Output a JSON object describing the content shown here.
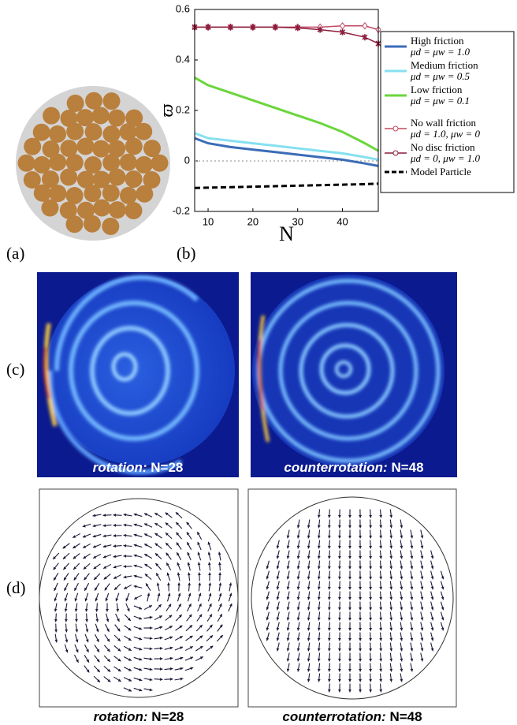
{
  "panels": {
    "a": {
      "label": "(a)"
    },
    "b": {
      "label": "(b)"
    },
    "c": {
      "label": "(c)",
      "captions": [
        {
          "mode": "rotation:",
          "n": "N=28"
        },
        {
          "mode": "counterrotation:",
          "n": "N=48"
        }
      ]
    },
    "d": {
      "label": "(d)",
      "captions": [
        {
          "mode": "rotation:",
          "n": "N=28"
        },
        {
          "mode": "counterrotation:",
          "n": "N=48"
        }
      ]
    }
  },
  "chart_data": {
    "type": "line",
    "xlabel": "N",
    "ylabel": "ϖ",
    "x": [
      7,
      10,
      15,
      20,
      25,
      30,
      35,
      40,
      45,
      48
    ],
    "xlim": [
      7,
      48
    ],
    "xticks": [
      10,
      20,
      30,
      40
    ],
    "ylim": [
      -0.2,
      0.6
    ],
    "yticks": [
      -0.2,
      0,
      0.2,
      0.4,
      0.6
    ],
    "series": [
      {
        "name": "High friction",
        "params": "μd = μw = 1.0",
        "color": "#3b6cb7",
        "values": [
          0.09,
          0.07,
          0.055,
          0.045,
          0.035,
          0.025,
          0.015,
          0.005,
          -0.01,
          -0.02
        ]
      },
      {
        "name": "Medium friction",
        "params": "μd = μw = 0.5",
        "color": "#86e0f0",
        "values": [
          0.11,
          0.09,
          0.08,
          0.07,
          0.06,
          0.05,
          0.04,
          0.03,
          0.015,
          0.005
        ]
      },
      {
        "name": "Low friction",
        "params": "μd = μw = 0.1",
        "color": "#6ad63c",
        "values": [
          0.33,
          0.3,
          0.27,
          0.24,
          0.21,
          0.18,
          0.15,
          0.115,
          0.07,
          0.04
        ]
      },
      {
        "name": "No wall friction",
        "params": "μd = 1.0, μw = 0",
        "color": "#c04a62",
        "marker": "diamond",
        "values": [
          0.53,
          0.53,
          0.53,
          0.53,
          0.53,
          0.53,
          0.53,
          0.535,
          0.535,
          0.52
        ]
      },
      {
        "name": "No disc friction",
        "params": "μd = 0, μw = 1.0",
        "color": "#8c1c3c",
        "marker": "star",
        "values": [
          0.53,
          0.53,
          0.53,
          0.53,
          0.53,
          0.527,
          0.52,
          0.51,
          0.49,
          0.465
        ]
      },
      {
        "name": "Model Particle",
        "color": "#000000",
        "dashed": true,
        "values": [
          -0.107,
          -0.106,
          -0.104,
          -0.102,
          -0.1,
          -0.098,
          -0.096,
          -0.094,
          -0.092,
          -0.09
        ]
      }
    ]
  }
}
